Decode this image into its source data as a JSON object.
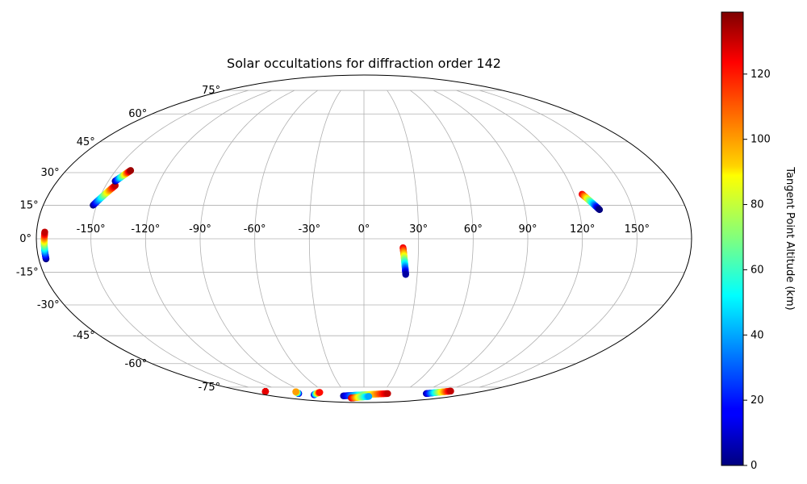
{
  "chart_data": {
    "type": "scatter",
    "projection": "mollweide",
    "title": "Solar occultations for diffraction order 142",
    "xlabel": "",
    "ylabel": "",
    "grid": true,
    "xlim": [
      -180,
      180
    ],
    "ylim": [
      -90,
      90
    ],
    "lon_ticks": [
      -150,
      -120,
      -90,
      -60,
      -30,
      0,
      30,
      60,
      90,
      120,
      150
    ],
    "lon_tick_labels": [
      "-150°",
      "-120°",
      "-90°",
      "-60°",
      "-30°",
      "0°",
      "30°",
      "60°",
      "90°",
      "120°",
      "150°"
    ],
    "lat_ticks": [
      75,
      60,
      45,
      30,
      15,
      0,
      -15,
      -30,
      -45,
      -60,
      -75
    ],
    "lat_tick_labels": [
      "75°",
      "60°",
      "45°",
      "30°",
      "15°",
      "0°",
      "-15°",
      "-30°",
      "-45°",
      "-60°",
      "-75°"
    ],
    "colormap": "jet",
    "colorbar": {
      "label": "Tangent Point Altitude (km)",
      "range": [
        0,
        139
      ],
      "ticks": [
        0,
        20,
        40,
        60,
        80,
        100,
        120
      ],
      "tick_labels": [
        "0",
        "20",
        "40",
        "60",
        "80",
        "100",
        "120"
      ]
    },
    "series": [
      {
        "lon_start": -176.0,
        "lat_start": -9,
        "lon_end": -175.5,
        "lat_end": 3,
        "alt_start": 0,
        "alt_end": 130
      },
      {
        "lon_start": -152.0,
        "lat_start": 15,
        "lon_end": -144.5,
        "lat_end": 24,
        "alt_start": 0,
        "alt_end": 130
      },
      {
        "lon_start": -146.0,
        "lat_start": 26,
        "lon_end": -141.0,
        "lat_end": 31,
        "alt_start": 0,
        "alt_end": 135
      },
      {
        "lon_start": 21.5,
        "lat_start": -4,
        "lon_end": 23.5,
        "lat_end": -16,
        "alt_start": 125,
        "alt_end": 5
      },
      {
        "lon_start": 124.5,
        "lat_start": 20,
        "lon_end": 131.5,
        "lat_end": 13,
        "alt_start": 125,
        "alt_end": 0
      },
      {
        "lon_start": -150.0,
        "lat_start": -78.3,
        "lon_end": -150.0,
        "lat_end": -78.3,
        "alt_start": 125,
        "alt_end": 125
      },
      {
        "lon_start": -110.0,
        "lat_start": -80.0,
        "lon_end": -105.0,
        "lat_end": -78.5,
        "alt_start": 5,
        "alt_end": 100
      },
      {
        "lon_start": -90.0,
        "lat_start": -81.0,
        "lon_end": -70.0,
        "lat_end": -79.0,
        "alt_start": 5,
        "alt_end": 120
      },
      {
        "lon_start": -40.0,
        "lat_start": -82.0,
        "lon_end": 40.0,
        "lat_end": -80.0,
        "alt_start": 5,
        "alt_end": 130
      },
      {
        "lon_start": -30.0,
        "lat_start": -84.0,
        "lon_end": 10.0,
        "lat_end": -82.5,
        "alt_start": 130,
        "alt_end": 40
      },
      {
        "lon_start": 105.0,
        "lat_start": -80.0,
        "lon_end": 130.0,
        "lat_end": -78.0,
        "alt_start": 5,
        "alt_end": 130
      }
    ]
  }
}
